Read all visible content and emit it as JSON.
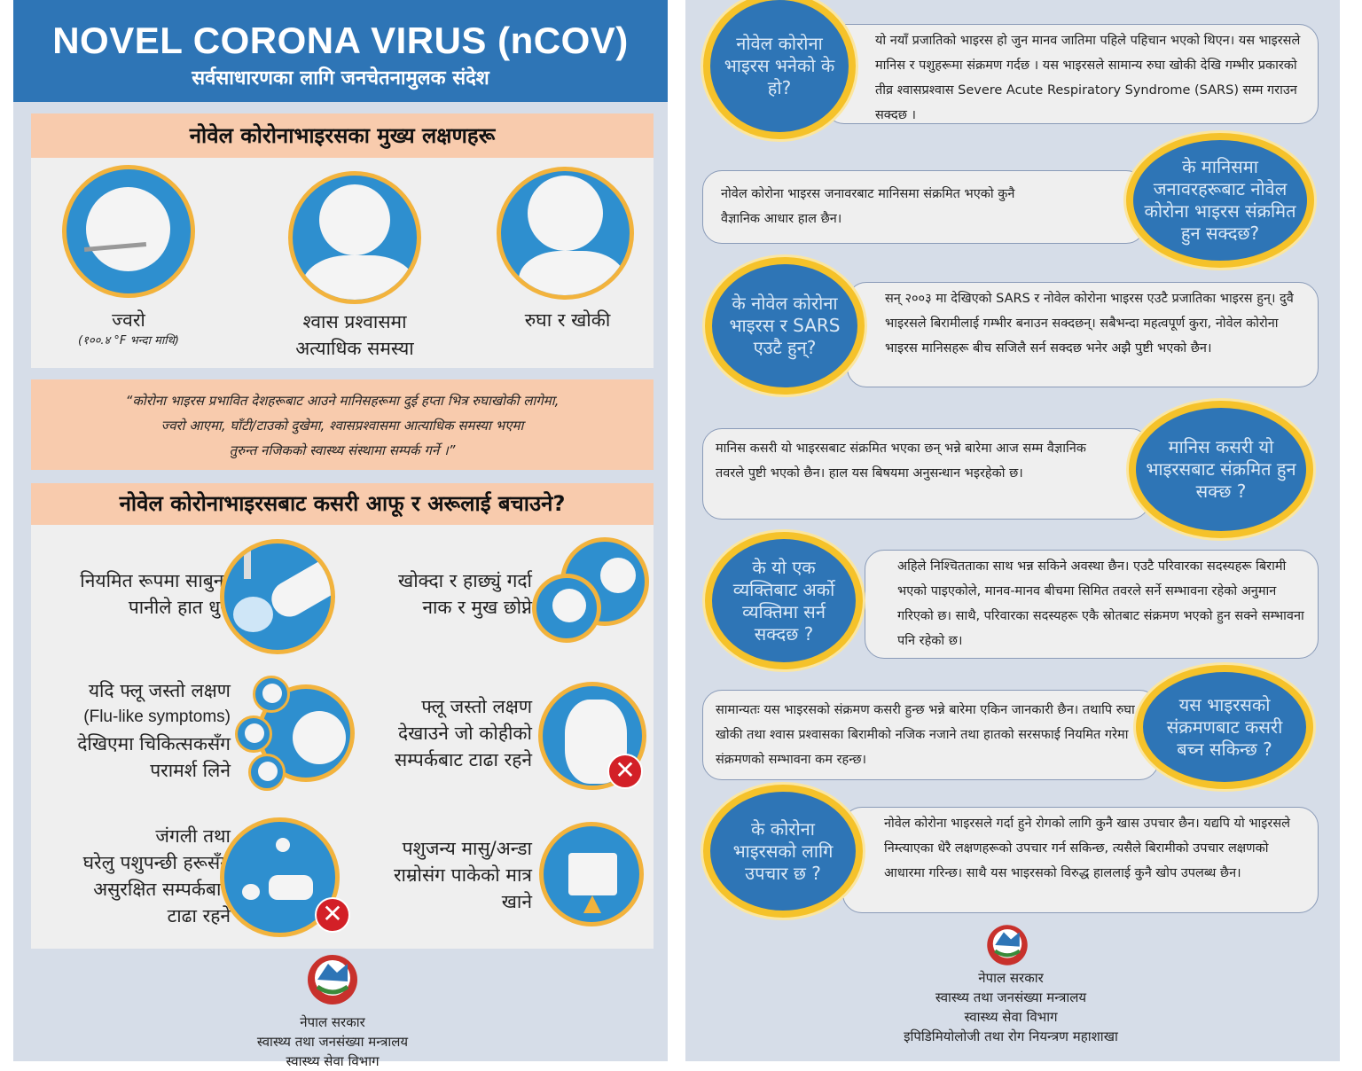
{
  "left": {
    "title": "NOVEL CORONA VIRUS (nCOV)",
    "subtitle": "सर्वसाधारणका लागि जनचेतनामुलक संदेश",
    "symptoms": {
      "heading": "नोवेल कोरोनाभाइरसका मुख्य लक्षणहरू",
      "items": [
        {
          "label": "ज्वरो",
          "note": "(१००.४ °F भन्दा माथि)",
          "icon": "fever-thermometer-icon"
        },
        {
          "label": "श्वास प्रश्वासमा अत्याधिक समस्या",
          "icon": "breathing-difficulty-icon"
        },
        {
          "label": "रुघा र खोकी",
          "icon": "cold-cough-icon"
        }
      ]
    },
    "advice_quote": [
      "“कोरोना भाइरस प्रभावित देशहरूबाट आउने मानिसहरूमा दुई हप्ता भित्र रुघाखोकी लागेमा,",
      "ज्वरो आएमा, घाँटी/टाउको दुखेमा, श्वासप्रश्वासमा आत्याधिक समस्या भएमा",
      "तुरुन्त नजिकको स्वास्थ्य संस्थामा सम्पर्क गर्ने ।”"
    ],
    "prevention": {
      "heading": "नोवेल कोरोनाभाइरसबाट कसरी आफू र अरूलाई बचाउने?",
      "items": [
        {
          "lines": [
            "नियमित रूपमा साबुन-",
            "पानीले हात धुने"
          ],
          "icon": "hand-washing-icon"
        },
        {
          "lines": [
            "खोक्दा र हाछ्युं गर्दा",
            "नाक र मुख छोप्ने"
          ],
          "icon": "cover-cough-icon"
        },
        {
          "lines": [
            "यदि फ्लू जस्तो लक्षण",
            "(Flu-like symptoms)",
            "देखिएमा चिकित्सकसँग",
            "परामर्श लिने"
          ],
          "icon": "consult-doctor-icon"
        },
        {
          "lines": [
            "फ्लू जस्तो लक्षण",
            "देखाउने जो कोहीको",
            "सम्पर्कबाट टाढा रहने"
          ],
          "icon": "no-hugging-icon"
        },
        {
          "lines": [
            "जंगली तथा",
            "घरेलु पशुपन्छी हरूसँग",
            "असुरक्षित सम्पर्कबाट",
            "टाढा रहने"
          ],
          "icon": "no-animal-contact-icon"
        },
        {
          "lines": [
            "पशुजन्य मासु/अन्डा",
            "राम्रोसंग पाकेको मात्र",
            "खाने"
          ],
          "icon": "cooking-pot-icon"
        }
      ]
    },
    "footer": [
      "नेपाल सरकार",
      "स्वास्थ्य तथा जनसंख्या मन्त्रालय",
      "स्वास्थ्य सेवा विभाग"
    ]
  },
  "right": {
    "faq": [
      {
        "q": "नोवेल कोरोना भाइरस भनेको के हो?",
        "a": "यो नयाँ प्रजातिको भाइरस हो जुन मानव जातिमा पहिले पहिचान भएको थिएन। यस भाइरसले मानिस र पशुहरूमा संक्रमण गर्दछ । यस भाइरसले सामान्य रुघा खोकी देखि गम्भीर प्रकारको तीव्र श्वासप्रश्वास Severe Acute Respiratory Syndrome (SARS) सम्म गराउन सक्दछ ।"
      },
      {
        "q": "के मानिसमा जनावरहरूबाट नोवेल कोरोना भाइरस संक्रमित हुन सक्दछ?",
        "a": "नोवेल कोरोना भाइरस जनावरबाट मानिसमा संक्रमित भएको कुनै वैज्ञानिक आधार हाल छैन।"
      },
      {
        "q": "के नोवेल कोरोना भाइरस र SARS एउटै हुन्?",
        "a": "सन् २००३ मा देखिएको SARS र नोवेल कोरोना भाइरस एउटै प्रजातिका भाइरस हुन्। दुवै भाइरसले बिरामीलाई गम्भीर बनाउन सक्दछन्। सबैभन्दा महत्वपूर्ण कुरा, नोवेल कोरोना भाइरस मानिसहरू बीच सजिलै सर्न सक्दछ भनेर अझै पुष्टी भएको छैन।"
      },
      {
        "q": "मानिस कसरी यो भाइरसबाट संक्रमित हुन सक्छ ?",
        "a": "मानिस कसरी यो भाइरसबाट संक्रमित भएका छन् भन्ने बारेमा आज सम्म वैज्ञानिक तवरले पुष्टी भएको छैन। हाल यस बिषयमा अनुसन्धान भइरहेको छ।"
      },
      {
        "q": "के यो एक व्यक्तिबाट अर्को व्यक्तिमा सर्न सक्दछ ?",
        "a": "अहिले निश्चितताका साथ भन्न सकिने अवस्था छैन। एउटै परिवारका सदस्यहरू बिरामी भएको पाइएकोले, मानव-मानव बीचमा सिमित तवरले सर्ने सम्भावना रहेको अनुमान गरिएको छ। साथै, परिवारका सदस्यहरू एकै स्रोतबाट संक्रमण भएको हुन सक्ने सम्भावना पनि रहेको छ।"
      },
      {
        "q": "यस भाइरसको संक्रमणबाट कसरी बच्न सकिन्छ ?",
        "a": "सामान्यतः यस भाइरसको संक्रमण कसरी हुन्छ भन्ने बारेमा एकिन जानकारी छैन। तथापि रुघा, खोकी तथा श्वास प्रश्वासका बिरामीको नजिक नजाने तथा हातको सरसफाई नियमित गरेमा संक्रमणको सम्भावना कम रहन्छ।"
      },
      {
        "q": "के कोरोना भाइरसको लागि उपचार छ ?",
        "a": "नोवेल कोरोना भाइरसले गर्दा हुने रोगको लागि कुनै खास उपचार छैन। यद्यपि यो भाइरसले निम्त्याएका धेरै लक्षणहरूको उपचार गर्न सकिन्छ, त्यसैले बिरामीको उपचार लक्षणको आधारमा गरिन्छ। साथै यस भाइरसको विरुद्ध हाललाई कुनै खोप उपलब्ध छैन।"
      }
    ],
    "footer": [
      "नेपाल सरकार",
      "स्वास्थ्य तथा जनसंख्या मन्त्रालय",
      "स्वास्थ्य सेवा विभाग",
      "इपिडिमियोलोजी तथा रोग नियन्त्रण महाशाखा"
    ]
  },
  "colors": {
    "header_blue": "#2e75b6",
    "peach": "#f8cbad",
    "circle_blue": "#2e8fcf",
    "ring_yellow": "#f5c22a",
    "cross_red": "#d32027",
    "panel_bg": "#d6dde8"
  }
}
